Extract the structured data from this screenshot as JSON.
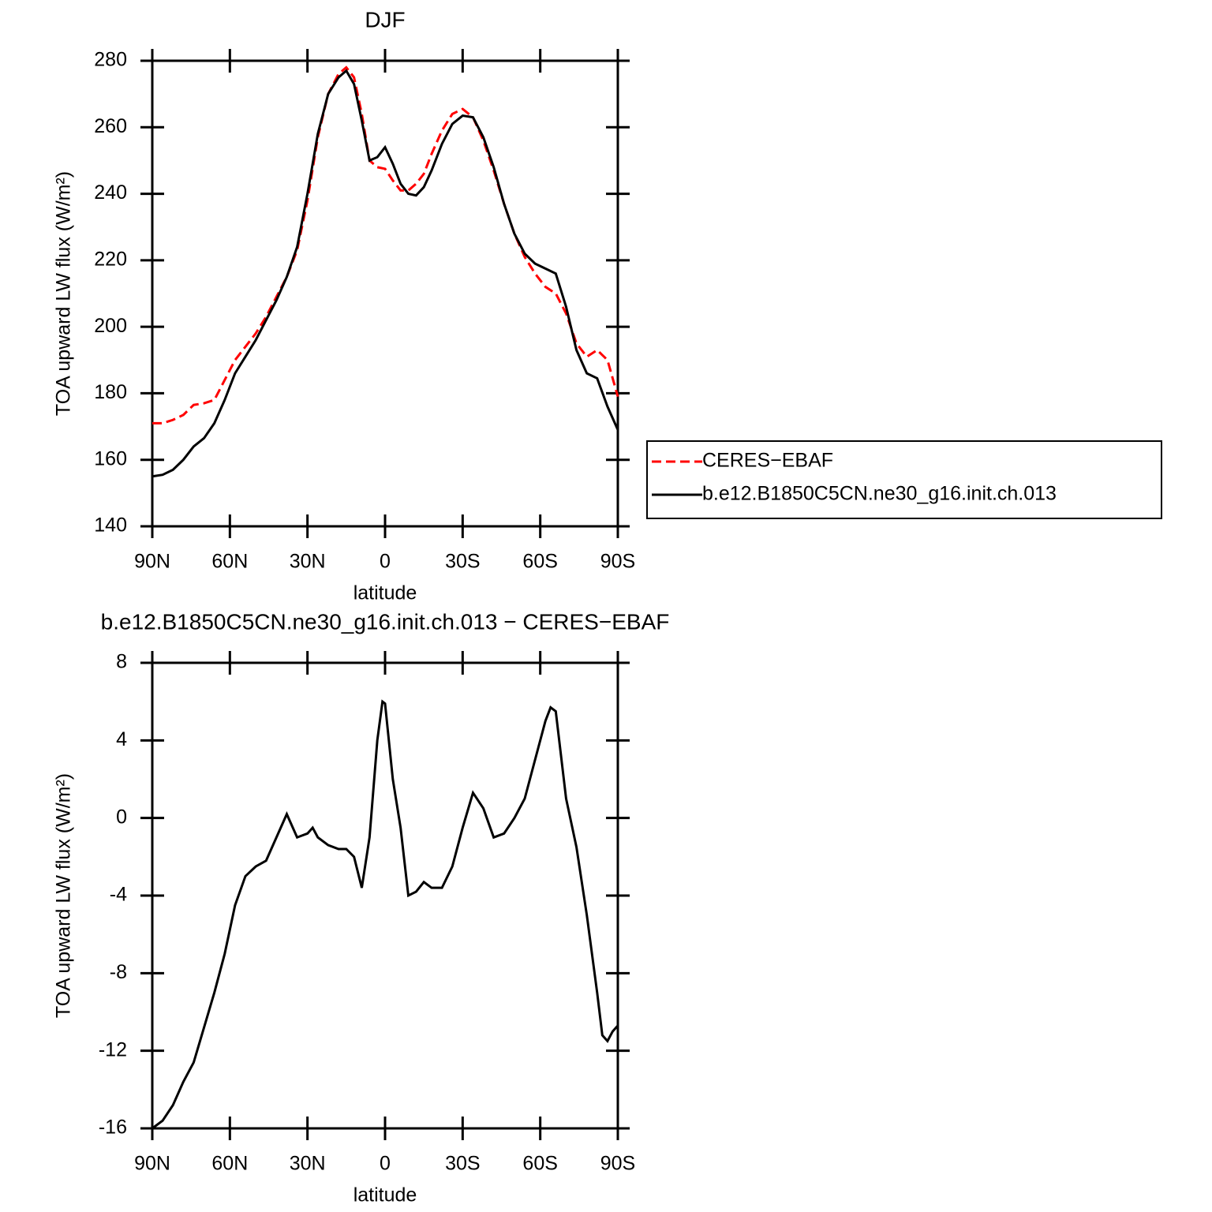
{
  "chart_data": [
    {
      "type": "line",
      "title": "DJF",
      "xlabel": "latitude",
      "ylabel": "TOA upward LW flux (W/m²)",
      "x": [
        90,
        86,
        82,
        78,
        74,
        70,
        66,
        62,
        58,
        54,
        50,
        46,
        42,
        38,
        34,
        30,
        26,
        22,
        18,
        15,
        12,
        9,
        6,
        3,
        0,
        -3,
        -6,
        -9,
        -12,
        -15,
        -18,
        -22,
        -26,
        -30,
        -34,
        -38,
        -42,
        -46,
        -50,
        -54,
        -58,
        -62,
        -66,
        -70,
        -74,
        -78,
        -82,
        -86,
        -90
      ],
      "series": [
        {
          "name": "CERES−EBAF",
          "color": "#ff0000",
          "dash": true,
          "values": [
            171,
            171,
            172,
            173.5,
            176.5,
            177,
            178,
            184,
            190,
            194,
            198,
            203,
            209,
            215,
            223,
            238,
            257,
            270,
            276,
            278,
            275,
            264,
            250,
            248,
            247.5,
            244,
            241,
            241,
            243,
            246,
            252,
            259,
            264,
            265.5,
            263,
            256,
            247,
            237,
            228,
            221,
            216,
            212,
            210,
            204,
            195,
            191,
            193,
            190,
            179
          ]
        },
        {
          "name": "b.e12.B1850C5CN.ne30_g16.init.ch.013",
          "color": "#000000",
          "dash": false,
          "values": [
            155,
            155.5,
            157,
            160,
            164,
            166.5,
            171,
            178,
            186,
            191,
            196,
            202,
            208,
            215,
            224,
            240,
            258,
            270,
            275,
            277,
            273,
            262,
            250,
            251,
            254,
            249,
            243,
            240,
            239.5,
            242,
            247,
            255,
            261,
            263.5,
            263,
            257,
            248,
            237,
            228,
            222,
            219,
            217.5,
            216,
            206,
            193,
            186,
            184.5,
            176,
            169
          ]
        }
      ],
      "xlim": [
        90,
        -90
      ],
      "xticks": [
        {
          "value": 90,
          "label": "90N"
        },
        {
          "value": 60,
          "label": "60N"
        },
        {
          "value": 30,
          "label": "30N"
        },
        0,
        {
          "value": -30,
          "label": "30S"
        },
        {
          "value": -60,
          "label": "60S"
        },
        {
          "value": -90,
          "label": "90S"
        }
      ],
      "ylim": [
        140,
        280
      ],
      "yticks": [
        140,
        160,
        180,
        200,
        220,
        240,
        260,
        280
      ],
      "legend": "right"
    },
    {
      "type": "line",
      "title": "b.e12.B1850C5CN.ne30_g16.init.ch.013 − CERES−EBAF",
      "xlabel": "latitude",
      "ylabel": "TOA upward LW flux (W/m²)",
      "x": [
        90,
        86,
        82,
        78,
        74,
        70,
        66,
        62,
        58,
        54,
        50,
        46,
        42,
        38,
        34,
        30,
        28,
        26,
        22,
        18,
        15,
        12,
        9,
        6,
        3,
        1,
        0,
        -3,
        -6,
        -9,
        -12,
        -15,
        -18,
        -22,
        -26,
        -30,
        -34,
        -38,
        -42,
        -46,
        -50,
        -54,
        -58,
        -62,
        -64,
        -66,
        -70,
        -74,
        -78,
        -82,
        -84,
        -86,
        -88,
        -90
      ],
      "series": [
        {
          "color": "#000000",
          "dash": false,
          "values": [
            -16,
            -15.6,
            -14.8,
            -13.6,
            -12.6,
            -10.8,
            -9,
            -7,
            -4.5,
            -3,
            -2.5,
            -2.2,
            -1,
            0.2,
            -1,
            -0.8,
            -0.5,
            -1,
            -1.4,
            -1.6,
            -1.6,
            -2,
            -3.6,
            -1,
            4,
            6,
            5.9,
            2,
            -0.5,
            -4,
            -3.8,
            -3.3,
            -3.6,
            -3.6,
            -2.5,
            -0.5,
            1.3,
            0.5,
            -1,
            -0.8,
            0,
            1,
            3,
            5,
            5.7,
            5.5,
            1,
            -1.5,
            -5,
            -9,
            -11.2,
            -11.5,
            -11,
            -10.7
          ]
        }
      ],
      "xlim": [
        90,
        -90
      ],
      "xticks": [
        {
          "value": 90,
          "label": "90N"
        },
        {
          "value": 60,
          "label": "60N"
        },
        {
          "value": 30,
          "label": "30N"
        },
        0,
        {
          "value": -30,
          "label": "30S"
        },
        {
          "value": -60,
          "label": "60S"
        },
        {
          "value": -90,
          "label": "90S"
        }
      ],
      "ylim": [
        -16,
        8
      ],
      "yticks": [
        -16,
        -12,
        -8,
        -4,
        0,
        4,
        8
      ]
    }
  ]
}
